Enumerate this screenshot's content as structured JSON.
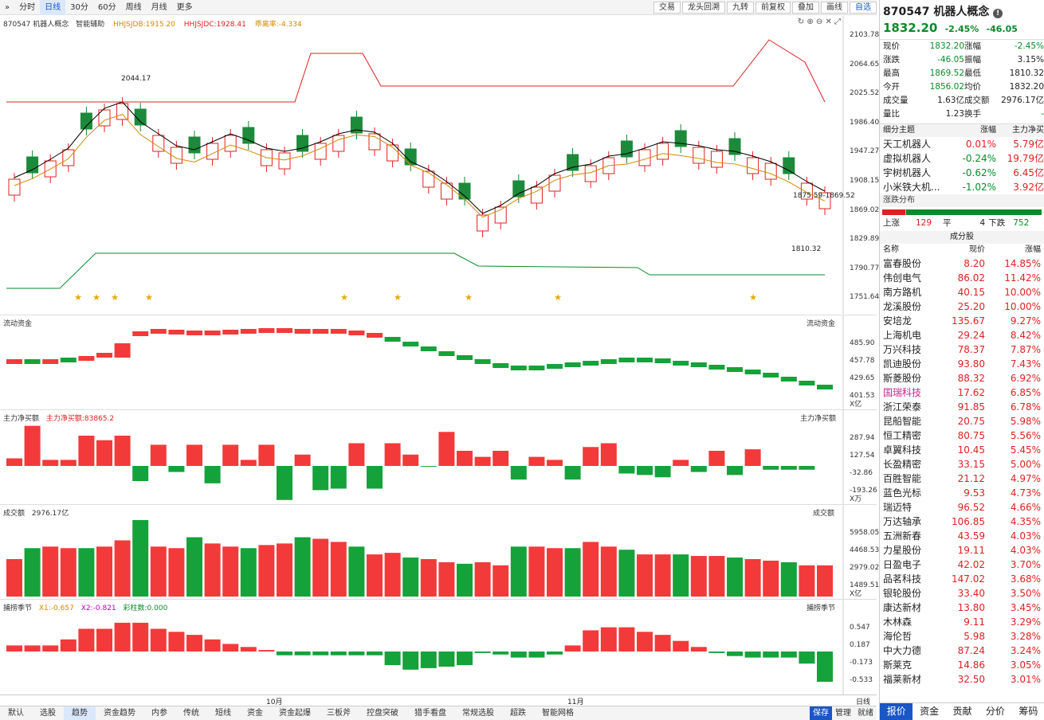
{
  "toolbar": {
    "items": [
      "分时",
      "日线",
      "30分",
      "60分",
      "周线",
      "月线",
      "更多"
    ],
    "right": [
      "交易",
      "龙头回溯",
      "九转",
      "前复权",
      "叠加",
      "画线",
      "自选"
    ]
  },
  "main": {
    "title": "870547  机器人概念",
    "assist": "智能辅助",
    "ind1": "HHJSJDB:1915.20",
    "ind2": "HHJSJDC:1928.41",
    "ind3": "乖离率:-4.334",
    "yaxis": [
      "2103.78",
      "2064.65",
      "2025.52",
      "1986.40",
      "1947.27",
      "1908.15",
      "1869.02",
      "1829.89",
      "1790.77",
      "1751.64"
    ],
    "high_label": "2044.17",
    "low_label": "1810.32",
    "range_label": "1875.59-1869.52"
  },
  "flow": {
    "title": "流动资金",
    "right_title": "流动资金",
    "yaxis": [
      "485.90",
      "457.78",
      "429.65",
      "401.53"
    ],
    "unit": "X亿"
  },
  "net": {
    "title": "主力净买额",
    "value_label": "主力净买额:83865.2",
    "right_title": "主力净买额",
    "yaxis": [
      "287.94",
      "127.54",
      "-32.86",
      "-193.26"
    ],
    "unit": "X万"
  },
  "vol": {
    "title": "成交额",
    "value_label": "2976.17亿",
    "right_title": "成交额",
    "yaxis": [
      "5958.05",
      "4468.53",
      "2979.02",
      "1489.51"
    ],
    "unit": "X亿"
  },
  "season": {
    "title": "捕捞季节",
    "x1": "X1:-0.657",
    "x2": "X2:-0.821",
    "bar": "彩柱数:0.000",
    "right_title": "捕捞季节",
    "yaxis": [
      "0.547",
      "0.187",
      "-0.173",
      "-0.533"
    ]
  },
  "xaxis": {
    "oct": "10月",
    "nov": "11月",
    "period": "日线"
  },
  "bottom": {
    "items": [
      "默认",
      "选股",
      "趋势",
      "资金趋势",
      "内参",
      "传统",
      "短线",
      "资金",
      "资金起爆",
      "三板斧",
      "控盘突破",
      "猎手看盘",
      "常规选股",
      "超跌",
      "智能网格"
    ],
    "right": [
      "保存",
      "管理",
      "就绪"
    ]
  },
  "quote": {
    "code_name": "870547 机器人概念",
    "price": "1832.20",
    "chg_pct": "-2.45%",
    "chg": "-46.05",
    "rows": [
      [
        "现价",
        "1832.20",
        "涨幅",
        "-2.45%"
      ],
      [
        "涨跌",
        "-46.05",
        "振幅",
        "3.15%"
      ],
      [
        "最高",
        "1869.52",
        "最低",
        "1810.32"
      ],
      [
        "今开",
        "1856.02",
        "均价",
        "1832.20"
      ],
      [
        "成交量",
        "1.63亿",
        "成交额",
        "2976.17亿"
      ],
      [
        "量比",
        "1.23",
        "换手",
        "-"
      ]
    ]
  },
  "themes": {
    "header": [
      "细分主题",
      "涨幅",
      "主力净买"
    ],
    "rows": [
      [
        "天工机器人",
        "0.01%",
        "5.79亿"
      ],
      [
        "虚拟机器人",
        "-0.24%",
        "19.79亿"
      ],
      [
        "宇树机器人",
        "-0.62%",
        "6.45亿"
      ],
      [
        "小米铁大机...",
        "-1.02%",
        "3.92亿"
      ]
    ]
  },
  "dist": {
    "title": "涨跌分布",
    "up_label": "上涨",
    "up": "129",
    "flat_label": "平",
    "flat": "4",
    "down_label": "下跌",
    "down": "752"
  },
  "members": {
    "title": "成分股",
    "header": [
      "名称",
      "现价",
      "涨幅"
    ],
    "rows": [
      [
        "富春股份",
        "8.20",
        "14.85%"
      ],
      [
        "伟创电气",
        "86.02",
        "11.42%"
      ],
      [
        "南方路机",
        "40.15",
        "10.00%"
      ],
      [
        "龙溪股份",
        "25.20",
        "10.00%"
      ],
      [
        "安培龙",
        "135.67",
        "9.27%"
      ],
      [
        "上海机电",
        "29.24",
        "8.42%"
      ],
      [
        "万兴科技",
        "78.37",
        "7.87%"
      ],
      [
        "凯迪股份",
        "93.80",
        "7.43%"
      ],
      [
        "斯菱股份",
        "88.32",
        "6.92%"
      ],
      [
        "国瑞科技",
        "17.62",
        "6.85%"
      ],
      [
        "浙江荣泰",
        "91.85",
        "6.78%"
      ],
      [
        "昆船智能",
        "20.75",
        "5.98%"
      ],
      [
        "恒工精密",
        "80.75",
        "5.56%"
      ],
      [
        "卓翼科技",
        "10.45",
        "5.45%"
      ],
      [
        "长盈精密",
        "33.15",
        "5.00%"
      ],
      [
        "百胜智能",
        "21.12",
        "4.97%"
      ],
      [
        "蓝色光标",
        "9.53",
        "4.73%"
      ],
      [
        "瑞迈特",
        "96.52",
        "4.66%"
      ],
      [
        "万达轴承",
        "106.85",
        "4.35%"
      ],
      [
        "五洲新春",
        "43.59",
        "4.03%"
      ],
      [
        "力星股份",
        "19.11",
        "4.03%"
      ],
      [
        "日盈电子",
        "42.02",
        "3.70%"
      ],
      [
        "品茗科技",
        "147.02",
        "3.68%"
      ],
      [
        "银轮股份",
        "33.40",
        "3.50%"
      ],
      [
        "康达新材",
        "13.80",
        "3.45%"
      ],
      [
        "木林森",
        "9.11",
        "3.29%"
      ],
      [
        "海伦哲",
        "5.98",
        "3.28%"
      ],
      [
        "中大力德",
        "87.24",
        "3.24%"
      ],
      [
        "斯莱克",
        "14.86",
        "3.05%"
      ],
      [
        "福莱新材",
        "32.50",
        "3.01%"
      ]
    ]
  },
  "rtabs": [
    "报价",
    "资金",
    "贡献",
    "分价",
    "筹码"
  ],
  "colors": {
    "up": "#e02020",
    "down": "#0a8a2a",
    "accent": "#1a56c4"
  }
}
